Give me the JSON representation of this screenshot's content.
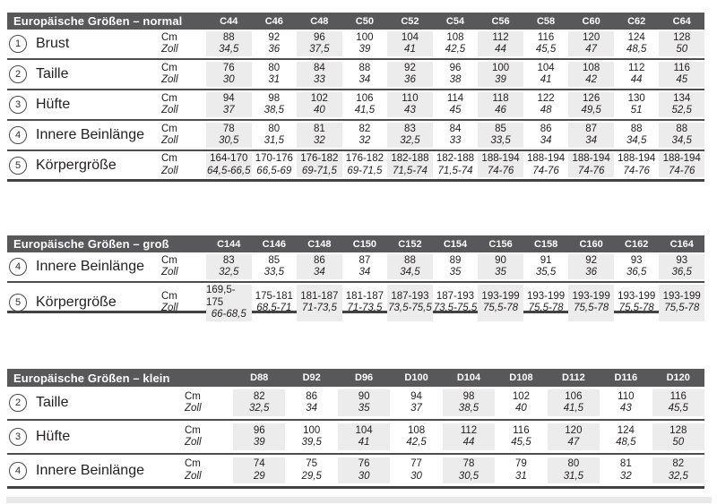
{
  "colors": {
    "header_bg": "#58585a",
    "header_text": "#ffffff",
    "column_shade": "#ececec",
    "rule_line": "#4d4d4f",
    "body_text": "#231f20"
  },
  "unit_labels": {
    "cm": "Cm",
    "zoll": "Zoll"
  },
  "tables": [
    {
      "title": "Europäische Größen – normal",
      "columns": [
        "C44",
        "C46",
        "C48",
        "C50",
        "C52",
        "C54",
        "C56",
        "C58",
        "C60",
        "C62",
        "C64"
      ],
      "rows": [
        {
          "num": "1",
          "label": "Brust",
          "cm": [
            "88",
            "92",
            "96",
            "100",
            "104",
            "108",
            "112",
            "116",
            "120",
            "124",
            "128"
          ],
          "zoll": [
            "34,5",
            "36",
            "37,5",
            "39",
            "41",
            "42,5",
            "44",
            "45,5",
            "47",
            "48,5",
            "50"
          ]
        },
        {
          "num": "2",
          "label": "Taille",
          "cm": [
            "76",
            "80",
            "84",
            "88",
            "92",
            "96",
            "100",
            "104",
            "108",
            "112",
            "116"
          ],
          "zoll": [
            "30",
            "31",
            "33",
            "34",
            "36",
            "38",
            "39",
            "41",
            "42",
            "44",
            "45"
          ]
        },
        {
          "num": "3",
          "label": "Hüfte",
          "cm": [
            "94",
            "98",
            "102",
            "106",
            "110",
            "114",
            "118",
            "122",
            "126",
            "130",
            "134"
          ],
          "zoll": [
            "37",
            "38,5",
            "40",
            "41,5",
            "43",
            "45",
            "46",
            "48",
            "49,5",
            "51",
            "52,5"
          ]
        },
        {
          "num": "4",
          "label": "Innere Beinlänge",
          "cm": [
            "78",
            "80",
            "81",
            "82",
            "83",
            "84",
            "85",
            "86",
            "87",
            "88",
            "88"
          ],
          "zoll": [
            "30,5",
            "31,5",
            "32",
            "32",
            "32,5",
            "33",
            "33,5",
            "34",
            "34",
            "34,5",
            "34,5"
          ]
        },
        {
          "num": "5",
          "label": "Körpergröße",
          "cm": [
            "164-170",
            "170-176",
            "176-182",
            "176-182",
            "182-188",
            "182-188",
            "188-194",
            "188-194",
            "188-194",
            "188-194",
            "188-194"
          ],
          "zoll": [
            "64,5-66,5",
            "66,5-69",
            "69-71,5",
            "69-71,5",
            "71,5-74",
            "71,5-74",
            "74-76",
            "74-76",
            "74-76",
            "74-76",
            "74-76"
          ]
        }
      ]
    },
    {
      "title": "Europäische Größen – groß",
      "columns": [
        "C144",
        "C146",
        "C148",
        "C150",
        "C152",
        "C154",
        "C156",
        "C158",
        "C160",
        "C162",
        "C164"
      ],
      "rows": [
        {
          "num": "4",
          "label": "Innere Beinlänge",
          "cm": [
            "83",
            "85",
            "86",
            "87",
            "88",
            "89",
            "90",
            "91",
            "92",
            "93",
            "93"
          ],
          "zoll": [
            "32,5",
            "33,5",
            "34",
            "34",
            "34,5",
            "35",
            "35",
            "35,5",
            "36",
            "36,5",
            "36,5"
          ]
        },
        {
          "num": "5",
          "label": "Körpergröße",
          "cm": [
            "169,5-175",
            "175-181",
            "181-187",
            "181-187",
            "187-193",
            "187-193",
            "193-199",
            "193-199",
            "193-199",
            "193-199",
            "193-199"
          ],
          "zoll": [
            "66-68,5",
            "68,5-71",
            "71-73,5",
            "71-73,5",
            "73,5-75,5",
            "73,5-75,5",
            "75,5-78",
            "75,5-78",
            "75,5-78",
            "75,5-78",
            "75,5-78"
          ]
        }
      ]
    },
    {
      "title": "Europäische Größen – klein",
      "columns": [
        "D88",
        "D92",
        "D96",
        "D100",
        "D104",
        "D108",
        "D112",
        "D116",
        "D120"
      ],
      "rows": [
        {
          "num": "2",
          "label": "Taille",
          "cm": [
            "82",
            "86",
            "90",
            "94",
            "98",
            "102",
            "106",
            "110",
            "116"
          ],
          "zoll": [
            "32,5",
            "34",
            "35",
            "37",
            "38,5",
            "40",
            "41,5",
            "43",
            "45,5"
          ]
        },
        {
          "num": "3",
          "label": "Hüfte",
          "cm": [
            "96",
            "100",
            "104",
            "108",
            "112",
            "116",
            "120",
            "124",
            "128"
          ],
          "zoll": [
            "39",
            "39,5",
            "41",
            "42,5",
            "44",
            "45,5",
            "47",
            "48,5",
            "50"
          ]
        },
        {
          "num": "4",
          "label": "Innere Beinlänge",
          "cm": [
            "74",
            "75",
            "76",
            "77",
            "78",
            "79",
            "80",
            "81",
            "82"
          ],
          "zoll": [
            "29",
            "29,5",
            "30",
            "30",
            "30,5",
            "31",
            "31,5",
            "32",
            "32,5"
          ]
        }
      ]
    }
  ]
}
